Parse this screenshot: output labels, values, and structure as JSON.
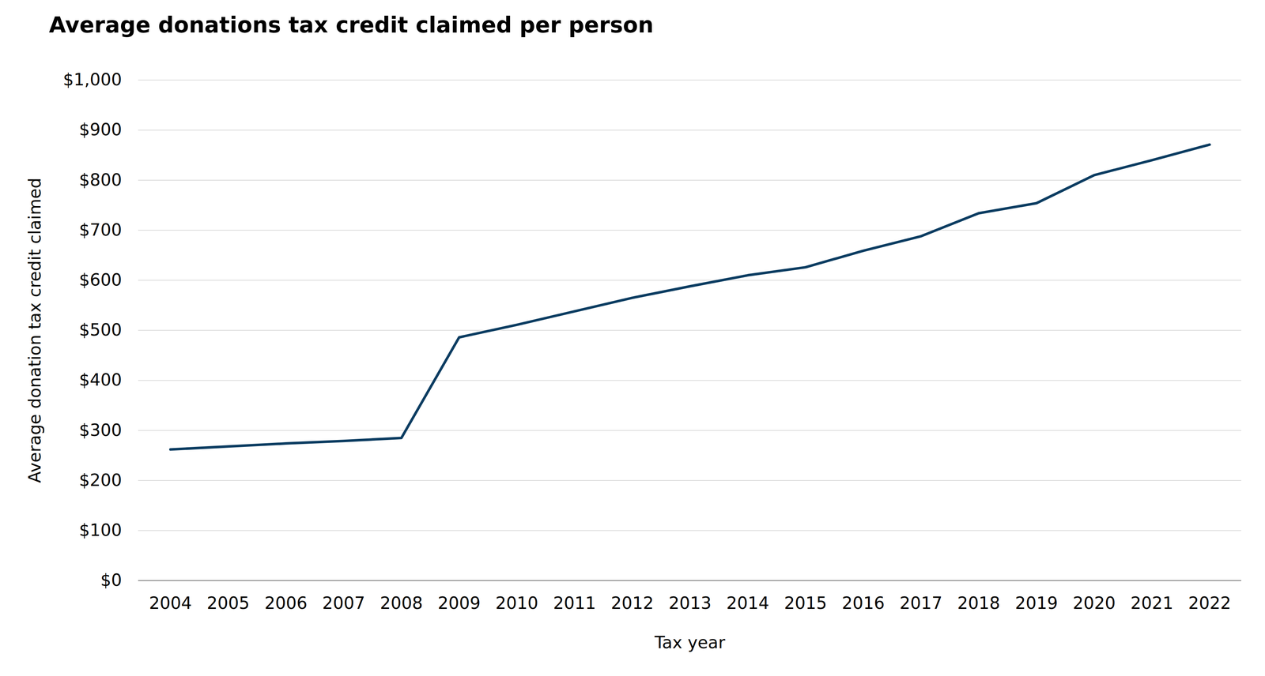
{
  "chart_data": {
    "type": "line",
    "title": "Average donations tax credit claimed per person",
    "x_label": "Tax year",
    "y_label": "Average donation tax credit claimed",
    "x": [
      "2004",
      "2005",
      "2006",
      "2007",
      "2008",
      "2009",
      "2010",
      "2011",
      "2012",
      "2013",
      "2014",
      "2015",
      "2016",
      "2017",
      "2018",
      "2019",
      "2020",
      "2021",
      "2022"
    ],
    "values": [
      262,
      268,
      274,
      279,
      285,
      486,
      511,
      538,
      565,
      588,
      610,
      626,
      659,
      688,
      734,
      754,
      810,
      840,
      871
    ],
    "color": "#0b3c61",
    "ylim": [
      0,
      1000
    ],
    "yticks": [
      {
        "value": 0,
        "label": "$0"
      },
      {
        "value": 100,
        "label": "$100"
      },
      {
        "value": 200,
        "label": "$200"
      },
      {
        "value": 300,
        "label": "$300"
      },
      {
        "value": 400,
        "label": "$400"
      },
      {
        "value": 500,
        "label": "$500"
      },
      {
        "value": 600,
        "label": "$600"
      },
      {
        "value": 700,
        "label": "$700"
      },
      {
        "value": 800,
        "label": "$800"
      },
      {
        "value": 900,
        "label": "$900"
      },
      {
        "value": 1000,
        "label": "$1,000"
      }
    ],
    "grid": true
  }
}
